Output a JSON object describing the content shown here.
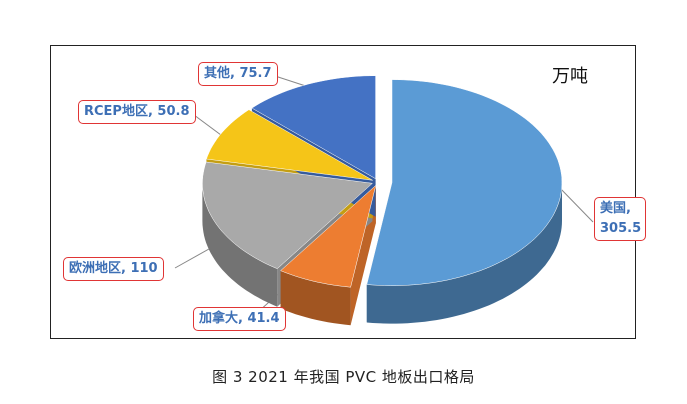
{
  "caption": "图 3 2021 年我国 PVC 地板出口格局",
  "chart_data": {
    "type": "pie",
    "unit": "万吨",
    "values": [
      305.5,
      41.4,
      110,
      50.8,
      75.7
    ],
    "value_labels": [
      "美国, 305.5",
      "加拿大, 41.4",
      "欧洲地区, 110",
      "RCEP地区, 50.8",
      "其他, 75.7"
    ],
    "colors": [
      "#5b9bd5",
      "#ed7d31",
      "#a9a9a9",
      "#f5c518",
      "#4472c4"
    ]
  }
}
